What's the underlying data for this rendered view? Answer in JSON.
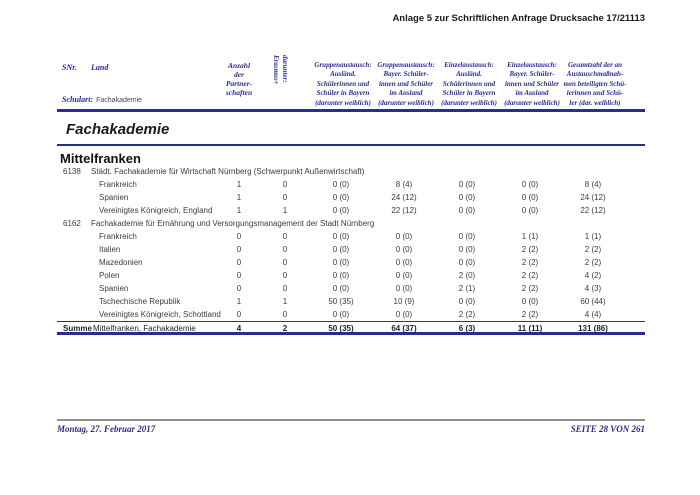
{
  "page": {
    "annex_note": "Anlage 5 zur Schriftlichen Anfrage Drucksache 17/21113"
  },
  "table_header": {
    "snr": "SNr.",
    "land": "Land",
    "schulart_label": "Schulart:",
    "schulart_value": "Fachakademie",
    "partnerships": "Anzahl\nder\nPartner-\nschaften",
    "rotated": "darunter:\nErasmus+",
    "columns": [
      "Gruppenaustausch:\nAusländ.\nSchülerinnen und\nSchüler in Bayern\n(darunter weiblich)",
      "Gruppenaustausch:\nBayer. Schüler-\ninnen und Schüler\nim Ausland\n(darunter weiblich)",
      "Einzelaustausch:\nAusländ.\nSchülerinnen und\nSchüler in Bayern\n(darunter weiblich)",
      "Einzelaustausch:\nBayer. Schüler-\ninnen und Schüler\nim Ausland\n(darunter weiblich)",
      "Gesamtzahl der an\nAustauschmaßnah-\nmen beteiligten Schü-\nlerinnen und Schü-\nler (dar. weiblich)"
    ]
  },
  "section": {
    "title": "Fachakademie",
    "region": "Mittelfranken"
  },
  "schools": [
    {
      "id": "6138",
      "name": "Städt. Fachakademie für Wirtschaft Nürnberg (Schwerpunkt Außenwirtschaft)",
      "rows": [
        {
          "land": "Frankreich",
          "values": [
            "1",
            "0",
            "0 (0)",
            "8 (4)",
            "0 (0)",
            "0 (0)",
            "8 (4)"
          ]
        },
        {
          "land": "Spanien",
          "values": [
            "1",
            "0",
            "0 (0)",
            "24 (12)",
            "0 (0)",
            "0 (0)",
            "24 (12)"
          ]
        },
        {
          "land": "Vereinigtes Königreich, England",
          "values": [
            "1",
            "1",
            "0 (0)",
            "22 (12)",
            "0 (0)",
            "0 (0)",
            "22 (12)"
          ]
        }
      ]
    },
    {
      "id": "6162",
      "name": "Fachakademie für Ernährung und Versorgungsmanagement der Stadt Nürnberg",
      "rows": [
        {
          "land": "Frankreich",
          "values": [
            "0",
            "0",
            "0 (0)",
            "0 (0)",
            "0 (0)",
            "1 (1)",
            "1 (1)"
          ]
        },
        {
          "land": "Italien",
          "values": [
            "0",
            "0",
            "0 (0)",
            "0 (0)",
            "0 (0)",
            "2 (2)",
            "2 (2)"
          ]
        },
        {
          "land": "Mazedonien",
          "values": [
            "0",
            "0",
            "0 (0)",
            "0 (0)",
            "0 (0)",
            "2 (2)",
            "2 (2)"
          ]
        },
        {
          "land": "Polen",
          "values": [
            "0",
            "0",
            "0 (0)",
            "0 (0)",
            "2 (0)",
            "2 (2)",
            "4 (2)"
          ]
        },
        {
          "land": "Spanien",
          "values": [
            "0",
            "0",
            "0 (0)",
            "0 (0)",
            "2 (1)",
            "2 (2)",
            "4 (3)"
          ]
        },
        {
          "land": "Tschechische Republik",
          "values": [
            "1",
            "1",
            "50 (35)",
            "10 (9)",
            "0 (0)",
            "0 (0)",
            "60 (44)"
          ]
        },
        {
          "land": "Vereinigtes Königreich, Schottland",
          "values": [
            "0",
            "0",
            "0 (0)",
            "0 (0)",
            "2 (2)",
            "2 (2)",
            "4 (4)"
          ]
        }
      ]
    }
  ],
  "summary": {
    "label_bold": "Summe",
    "label_rest": "Mittelfranken, Fachakademie",
    "values": [
      "4",
      "2",
      "50 (35)",
      "64 (37)",
      "6 (3)",
      "11 (11)",
      "131 (86)"
    ]
  },
  "footer": {
    "date": "Montag, 27. Februar 2017",
    "page": "SEITE 28 VON 261"
  },
  "colors": {
    "navy": "#2b2b94",
    "body_text": "#3c3c3c"
  }
}
